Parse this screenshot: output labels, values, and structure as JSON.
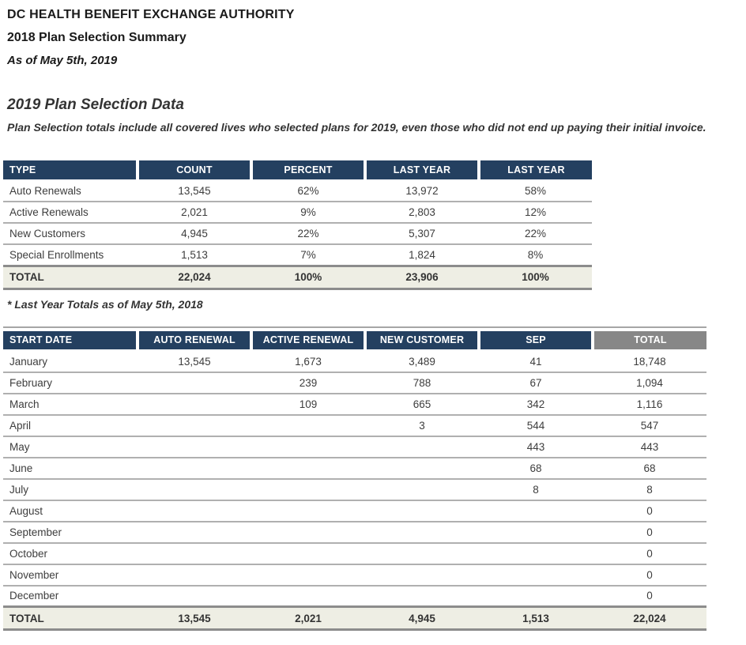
{
  "page": {
    "title": "DC HEALTH BENEFIT EXCHANGE AUTHORITY",
    "subtitle": "2018 Plan Selection Summary",
    "as_of": "As of May 5th, 2019"
  },
  "section": {
    "heading": "2019 Plan Selection Data",
    "description": "Plan Selection totals include all covered lives who selected plans for 2019, even those who did not end up paying their initial invoice."
  },
  "summary_table": {
    "columns": [
      "TYPE",
      "COUNT",
      "PERCENT",
      "LAST YEAR",
      "LAST YEAR"
    ],
    "rows": [
      [
        "Auto Renewals",
        "13,545",
        "62%",
        "13,972",
        "58%"
      ],
      [
        "Active Renewals",
        "2,021",
        "9%",
        "2,803",
        "12%"
      ],
      [
        "New Customers",
        "4,945",
        "22%",
        "5,307",
        "22%"
      ],
      [
        "Special Enrollments",
        "1,513",
        "7%",
        "1,824",
        "8%"
      ]
    ],
    "total_row": [
      "TOTAL",
      "22,024",
      "100%",
      "23,906",
      "100%"
    ],
    "footnote": "* Last Year Totals as of May 5th, 2018"
  },
  "monthly_table": {
    "columns": [
      "START DATE",
      "AUTO RENEWAL",
      "ACTIVE RENEWAL",
      "NEW CUSTOMER",
      "SEP",
      "TOTAL"
    ],
    "rows": [
      [
        "January",
        "13,545",
        "1,673",
        "3,489",
        "41",
        "18,748"
      ],
      [
        "February",
        "",
        "239",
        "788",
        "67",
        "1,094"
      ],
      [
        "March",
        "",
        "109",
        "665",
        "342",
        "1,116"
      ],
      [
        "April",
        "",
        "",
        "3",
        "544",
        "547"
      ],
      [
        "May",
        "",
        "",
        "",
        "443",
        "443"
      ],
      [
        "June",
        "",
        "",
        "",
        "68",
        "68"
      ],
      [
        "July",
        "",
        "",
        "",
        "8",
        "8"
      ],
      [
        "August",
        "",
        "",
        "",
        "",
        "0"
      ],
      [
        "September",
        "",
        "",
        "",
        "",
        "0"
      ],
      [
        "October",
        "",
        "",
        "",
        "",
        "0"
      ],
      [
        "November",
        "",
        "",
        "",
        "",
        "0"
      ],
      [
        "December",
        "",
        "",
        "",
        "",
        "0"
      ]
    ],
    "total_row": [
      "TOTAL",
      "13,545",
      "2,021",
      "4,945",
      "1,513",
      "22,024"
    ]
  },
  "colors": {
    "header_navy": "#244060",
    "header_gray": "#878787",
    "total_row_bg": "#eeeee4",
    "row_border": "#b0b0b0",
    "thick_border": "#8c8c8c",
    "body_text": "#3d3d3d"
  }
}
